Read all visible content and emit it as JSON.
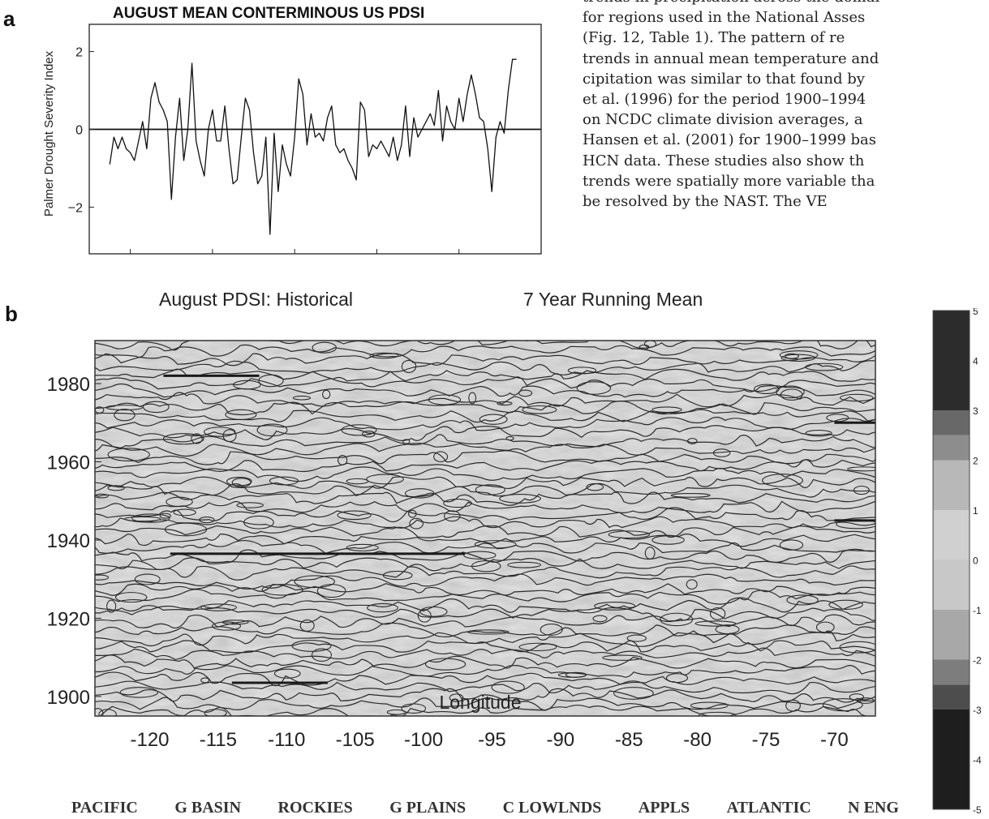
{
  "panel_a": {
    "letter": "a",
    "title": "AUGUST MEAN CONTERMINOUS US PDSI"
  },
  "panel_b": {
    "letter": "b",
    "title_left": "August PDSI: Historical",
    "title_right": "7 Year Running Mean"
  },
  "body_text": {
    "lines": [
      "trends in precipitation across the domai",
      "for regions used in the National Asses",
      "(Fig. 12, Table 1). The pattern of re",
      "trends in annual mean temperature and",
      "cipitation was similar to that found by",
      "et al. (1996) for the period 1900–1994",
      "on NCDC climate division averages, a",
      "Hansen et al. (2001) for 1900–1999 bas",
      "HCN data. These studies also show th",
      "trends were spatially more variable tha",
      "be resolved by the NAST. The VE"
    ]
  },
  "regions": [
    "PACIFIC",
    "G BASIN",
    "ROCKIES",
    "G PLAINS",
    "C LOWLNDS",
    "APPLS",
    "ATLANTIC",
    "N ENG"
  ],
  "colorbar": {
    "ticks": [
      "5",
      "4",
      "3",
      "2",
      "1",
      "0",
      "-1",
      "-2",
      "-3",
      "-4",
      "-5"
    ],
    "bands": [
      {
        "from": -5,
        "to": -3,
        "color": "#1e1e1e"
      },
      {
        "from": -3,
        "to": -2.5,
        "color": "#4d4d4d"
      },
      {
        "from": -2.5,
        "to": -2,
        "color": "#7d7d7d"
      },
      {
        "from": -2,
        "to": -1,
        "color": "#a8a8a8"
      },
      {
        "from": -1,
        "to": 0,
        "color": "#c8c8c8"
      },
      {
        "from": 0,
        "to": 1,
        "color": "#d0d0d0"
      },
      {
        "from": 1,
        "to": 2,
        "color": "#b8b8b8"
      },
      {
        "from": 2,
        "to": 2.5,
        "color": "#8d8d8d"
      },
      {
        "from": 2.5,
        "to": 3,
        "color": "#686868"
      },
      {
        "from": 3,
        "to": 5,
        "color": "#2c2c2c"
      }
    ]
  },
  "chart_data": [
    {
      "type": "line",
      "title": "AUGUST MEAN CONTERMINOUS US PDSI",
      "xlabel": "",
      "ylabel": "Palmer Drought Severity Index",
      "xlim": [
        1890,
        2000
      ],
      "ylim": [
        -3.2,
        2.7
      ],
      "x_ticks": [
        1900,
        1920,
        1940,
        1960,
        1980,
        2000
      ],
      "y_ticks": [
        {
          "value": 2,
          "label": "2"
        },
        {
          "value": 0,
          "label": "0"
        },
        {
          "value": -2,
          "label": "−2"
        }
      ],
      "reference_line": 0,
      "x": [
        1895,
        1896,
        1897,
        1898,
        1899,
        1900,
        1901,
        1902,
        1903,
        1904,
        1905,
        1906,
        1907,
        1908,
        1909,
        1910,
        1911,
        1912,
        1913,
        1914,
        1915,
        1916,
        1917,
        1918,
        1919,
        1920,
        1921,
        1922,
        1923,
        1924,
        1925,
        1926,
        1927,
        1928,
        1929,
        1930,
        1931,
        1932,
        1933,
        1934,
        1935,
        1936,
        1937,
        1938,
        1939,
        1940,
        1941,
        1942,
        1943,
        1944,
        1945,
        1946,
        1947,
        1948,
        1949,
        1950,
        1951,
        1952,
        1953,
        1954,
        1955,
        1956,
        1957,
        1958,
        1959,
        1960,
        1961,
        1962,
        1963,
        1964,
        1965,
        1966,
        1967,
        1968,
        1969,
        1970,
        1971,
        1972,
        1973,
        1974,
        1975,
        1976,
        1977,
        1978,
        1979,
        1980,
        1981,
        1982,
        1983,
        1984,
        1985,
        1986,
        1987,
        1988,
        1989,
        1990,
        1991,
        1992,
        1993,
        1994
      ],
      "values": [
        -0.9,
        -0.2,
        -0.5,
        -0.2,
        -0.5,
        -0.6,
        -0.8,
        -0.3,
        0.2,
        -0.5,
        0.8,
        1.2,
        0.7,
        0.5,
        0.2,
        -1.8,
        -0.2,
        0.8,
        -0.8,
        0.0,
        1.7,
        -0.3,
        -0.8,
        -1.2,
        0.0,
        0.5,
        -0.3,
        -0.3,
        0.6,
        -0.5,
        -1.4,
        -1.3,
        -0.2,
        0.8,
        0.5,
        -0.6,
        -1.4,
        -1.2,
        -0.2,
        -2.7,
        -0.1,
        -1.6,
        -0.4,
        -0.9,
        -1.2,
        -0.2,
        1.3,
        0.9,
        -0.4,
        0.4,
        -0.2,
        -0.1,
        -0.3,
        0.3,
        0.6,
        -0.4,
        -0.6,
        -0.5,
        -0.8,
        -1.0,
        -1.3,
        0.7,
        0.5,
        -0.7,
        -0.4,
        -0.5,
        -0.3,
        -0.5,
        -0.7,
        -0.2,
        -0.8,
        -0.4,
        0.6,
        -0.7,
        0.3,
        -0.2,
        0.0,
        0.2,
        0.4,
        0.1,
        1.0,
        -0.3,
        0.6,
        0.2,
        0.0,
        0.8,
        0.2,
        0.9,
        1.4,
        0.9,
        0.3,
        0.2,
        -0.5,
        -1.6,
        -0.2,
        0.2,
        -0.1,
        1.0,
        1.8,
        1.8
      ]
    },
    {
      "type": "heatmap",
      "title": "August PDSI: Historical",
      "subtitle": "7 Year Running Mean",
      "xlabel": "Longitude",
      "ylabel": "",
      "xlim": [
        -124,
        -67
      ],
      "ylim": [
        1895,
        1991
      ],
      "x_ticks": [
        -120,
        -115,
        -110,
        -105,
        -100,
        -95,
        -90,
        -85,
        -80,
        -75,
        -70
      ],
      "y_ticks": [
        1900,
        1920,
        1940,
        1960,
        1980
      ],
      "colorbar_range": [
        -5,
        5
      ],
      "grid": false
    }
  ]
}
